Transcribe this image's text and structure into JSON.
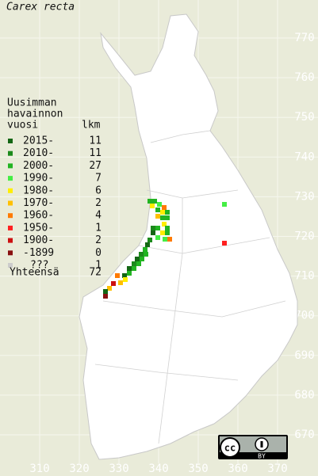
{
  "title": "Carex recta",
  "legend": {
    "header": [
      "Uusimman",
      "havainnon",
      "vuosi"
    ],
    "count_header": "lkm",
    "rows": [
      {
        "label": "2015-",
        "count": 11,
        "color": "#146614"
      },
      {
        "label": "2010-",
        "count": 11,
        "color": "#1c8a1c"
      },
      {
        "label": "2000-",
        "count": 27,
        "color": "#22b422"
      },
      {
        "label": "1990-",
        "count": 7,
        "color": "#44ee44"
      },
      {
        "label": "1980-",
        "count": 6,
        "color": "#ffee00"
      },
      {
        "label": "1970-",
        "count": 2,
        "color": "#ffc000"
      },
      {
        "label": "1960-",
        "count": 4,
        "color": "#ff7a00"
      },
      {
        "label": "1950-",
        "count": 1,
        "color": "#ff2020"
      },
      {
        "label": "1900-",
        "count": 2,
        "color": "#cc1010"
      },
      {
        "label": "-1899",
        "count": 0,
        "color": "#881010"
      },
      {
        "label": "???",
        "count": 1,
        "color": "#cccccc"
      }
    ],
    "total": {
      "label": "Yhteensä",
      "count": 72
    }
  },
  "axes": {
    "x_ticks": [
      310,
      320,
      330,
      340,
      350,
      360,
      370
    ],
    "y_ticks": [
      670,
      680,
      690,
      700,
      710,
      720,
      730,
      740,
      750,
      760,
      770
    ]
  },
  "license": {
    "cc": "cc",
    "by": "BY"
  }
}
